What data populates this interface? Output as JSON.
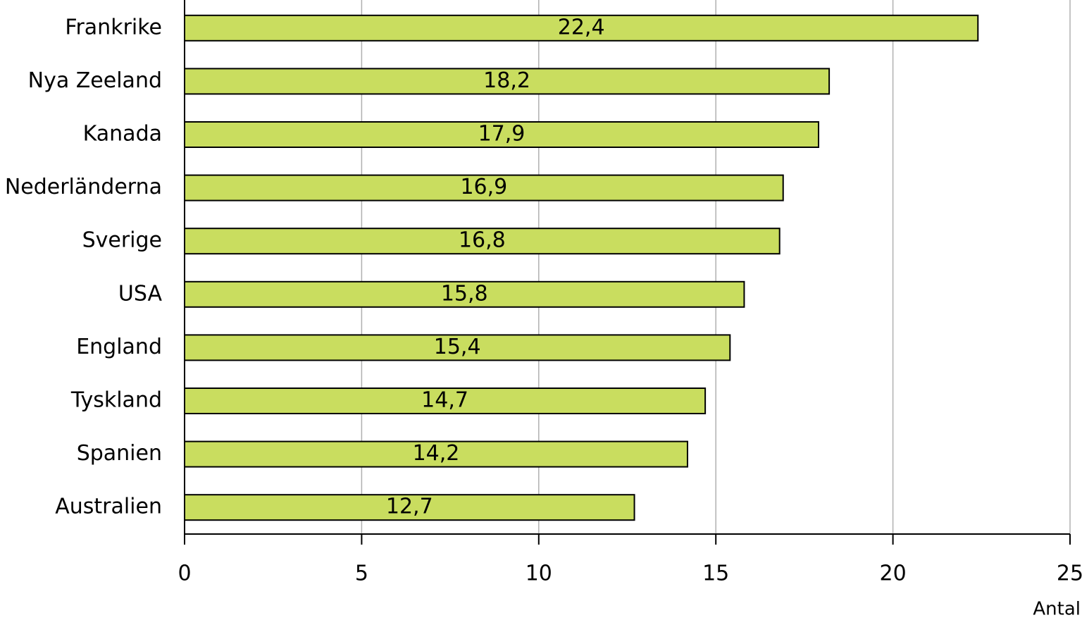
{
  "chart_data": {
    "type": "bar",
    "orientation": "horizontal",
    "categories": [
      "Frankrike",
      "Nya Zeeland",
      "Kanada",
      "Nederländerna",
      "Sverige",
      "USA",
      "England",
      "Tyskland",
      "Spanien",
      "Australien"
    ],
    "values": [
      22.4,
      18.2,
      17.9,
      16.9,
      16.8,
      15.8,
      15.4,
      14.7,
      14.2,
      12.7
    ],
    "value_labels": [
      "22,4",
      "18,2",
      "17,9",
      "16,9",
      "16,8",
      "15,8",
      "15,4",
      "14,7",
      "14,2",
      "12,7"
    ],
    "color": "#c9dd5f",
    "xlabel": "Antal",
    "xlim": [
      0,
      25
    ],
    "xticks": [
      0,
      5,
      10,
      15,
      20,
      25
    ],
    "grid": true
  }
}
